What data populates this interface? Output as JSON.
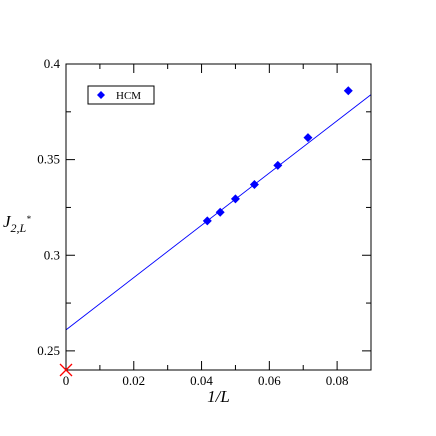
{
  "chart_data": {
    "type": "scatter",
    "xlabel": "1/L",
    "ylabel": "J2,L*",
    "xlim": [
      0,
      0.09
    ],
    "ylim": [
      0.24,
      0.4
    ],
    "x_ticks": [
      {
        "value": 0,
        "label": "0"
      },
      {
        "value": 0.02,
        "label": "0.02"
      },
      {
        "value": 0.04,
        "label": "0.04"
      },
      {
        "value": 0.06,
        "label": "0.06"
      },
      {
        "value": 0.08,
        "label": "0.08"
      }
    ],
    "y_ticks": [
      {
        "value": 0.25,
        "label": "0.25"
      },
      {
        "value": 0.3,
        "label": "0.3"
      },
      {
        "value": 0.35,
        "label": "0.35"
      },
      {
        "value": 0.4,
        "label": "0.4"
      }
    ],
    "series": [
      {
        "name": "HCM",
        "marker": "diamond",
        "color": "#0000ff",
        "points": [
          {
            "x": 0.0417,
            "y": 0.318
          },
          {
            "x": 0.0455,
            "y": 0.3225
          },
          {
            "x": 0.05,
            "y": 0.3295
          },
          {
            "x": 0.0556,
            "y": 0.337
          },
          {
            "x": 0.0625,
            "y": 0.347
          },
          {
            "x": 0.0714,
            "y": 0.3615
          },
          {
            "x": 0.0833,
            "y": 0.386
          }
        ]
      }
    ],
    "fit_line": {
      "color": "#0000ff",
      "points": [
        {
          "x": 0,
          "y": 0.261
        },
        {
          "x": 0.09,
          "y": 0.384
        }
      ]
    },
    "extrapolated_point": {
      "x": 0,
      "y": 0.24,
      "marker": "x",
      "color": "#ff0000"
    },
    "legend": {
      "position": "top-left"
    },
    "grid": false
  }
}
